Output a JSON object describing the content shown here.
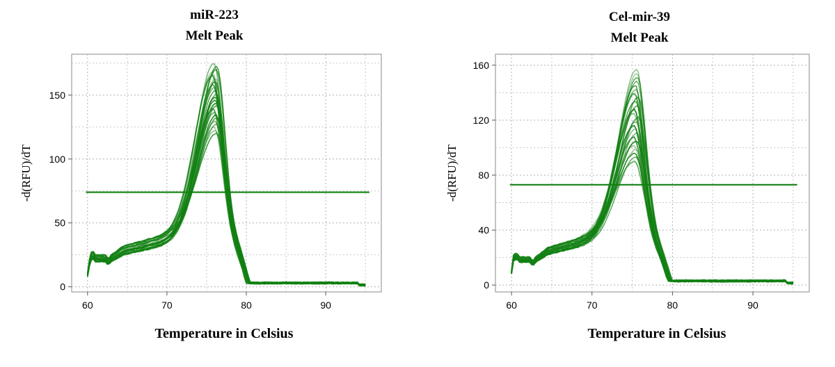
{
  "chart_data": [
    {
      "type": "line",
      "title": "miR-223",
      "subtitle": "Melt Peak",
      "xlabel": "Temperature in  Celsius",
      "ylabel": "-d(RFU)/dT",
      "xlim": [
        58,
        97
      ],
      "ylim": [
        -4,
        182
      ],
      "xticks": [
        60,
        70,
        80,
        90
      ],
      "yticks": [
        0,
        50,
        100,
        150
      ],
      "xtick_labels": [
        "60",
        "70",
        "80",
        "90"
      ],
      "ytick_labels": [
        "0",
        "50",
        "100",
        "150"
      ],
      "grid": true,
      "threshold": 74,
      "line_color": "#128012",
      "peak_temperature": 76,
      "peak_range": [
        120,
        175
      ],
      "shoulder_value": 22,
      "series_count": 24
    },
    {
      "type": "line",
      "title": "Cel-mir-39",
      "subtitle": "Melt Peak",
      "xlabel": "Temperature in  Celsius",
      "ylabel": "-d(RFU)/dT",
      "xlim": [
        58,
        97
      ],
      "ylim": [
        -5,
        168
      ],
      "xticks": [
        60,
        70,
        80,
        90
      ],
      "yticks": [
        0,
        40,
        80,
        120,
        160
      ],
      "xtick_labels": [
        "60",
        "70",
        "80",
        "90"
      ],
      "ytick_labels": [
        "0",
        "40",
        "80",
        "120",
        "160"
      ],
      "grid": true,
      "threshold": 73,
      "line_color": "#128012",
      "peak_temperature": 75.5,
      "peak_range": [
        90,
        157
      ],
      "shoulder_value": 18,
      "series_count": 24
    }
  ]
}
